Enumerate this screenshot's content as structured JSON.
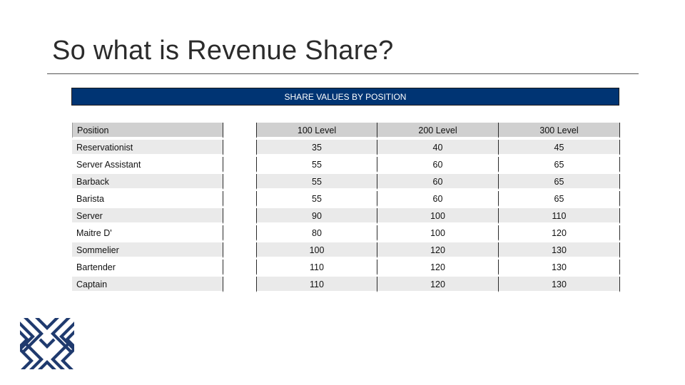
{
  "slide": {
    "title": "So what is Revenue Share?",
    "banner": "SHARE VALUES BY POSITION"
  },
  "table": {
    "headers": [
      "Position",
      "100 Level",
      "200 Level",
      "300 Level"
    ],
    "rows": [
      [
        "Reservationist",
        "35",
        "40",
        "45"
      ],
      [
        "Server Assistant",
        "55",
        "60",
        "65"
      ],
      [
        "Barback",
        "55",
        "60",
        "65"
      ],
      [
        "Barista",
        "55",
        "60",
        "65"
      ],
      [
        "Server",
        "90",
        "100",
        "110"
      ],
      [
        "Maitre D'",
        "80",
        "100",
        "120"
      ],
      [
        "Sommelier",
        "100",
        "120",
        "130"
      ],
      [
        "Bartender",
        "110",
        "120",
        "130"
      ],
      [
        "Captain",
        "110",
        "120",
        "130"
      ]
    ]
  },
  "colors": {
    "banner_bg": "#003473",
    "logo": "#1f3a6e"
  },
  "logo": {
    "icon": "chevron-pattern-logo-icon"
  }
}
